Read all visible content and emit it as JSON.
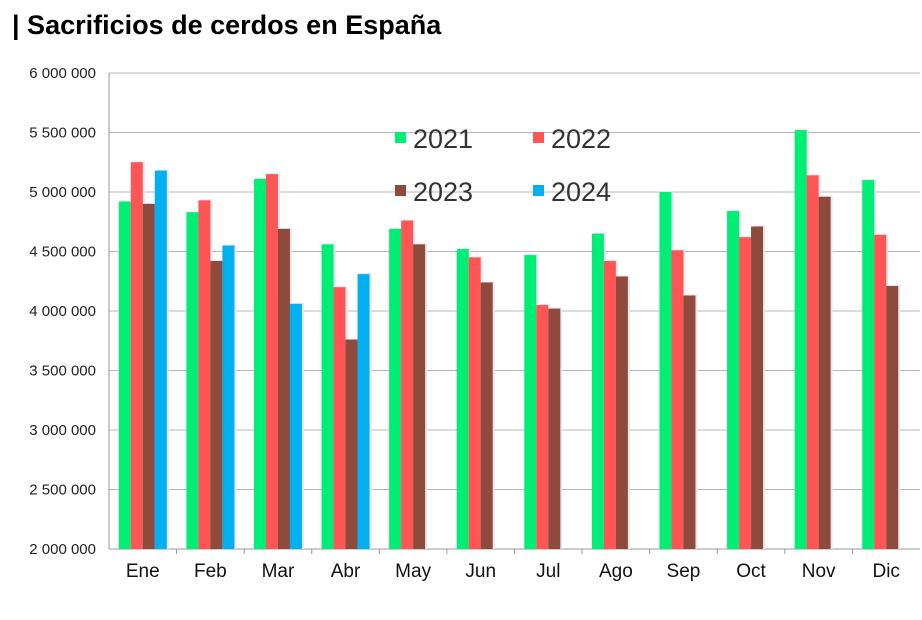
{
  "title": "| Sacrificios de cerdos en España",
  "chart_data": {
    "type": "bar",
    "title": "| Sacrificios de cerdos en España",
    "categories": [
      "Ene",
      "Feb",
      "Mar",
      "Abr",
      "May",
      "Jun",
      "Jul",
      "Ago",
      "Sep",
      "Oct",
      "Nov",
      "Dic"
    ],
    "series": [
      {
        "name": "2021",
        "color": "#00ee76",
        "values": [
          4920000,
          4830000,
          5110000,
          4560000,
          4690000,
          4520000,
          4470000,
          4650000,
          5000000,
          4840000,
          5520000,
          5100000
        ]
      },
      {
        "name": "2022",
        "color": "#ff5555",
        "values": [
          5250000,
          4930000,
          5150000,
          4200000,
          4760000,
          4450000,
          4050000,
          4420000,
          4510000,
          4620000,
          5140000,
          4640000
        ]
      },
      {
        "name": "2023",
        "color": "#8e4a3a",
        "values": [
          4900000,
          4420000,
          4690000,
          3760000,
          4560000,
          4240000,
          4020000,
          4290000,
          4130000,
          4710000,
          4960000,
          4210000
        ]
      },
      {
        "name": "2024",
        "color": "#00b0f0",
        "values": [
          5180000,
          4550000,
          4060000,
          4310000,
          null,
          null,
          null,
          null,
          null,
          null,
          null,
          null
        ]
      }
    ],
    "yticks": [
      "6 000 000",
      "5 500 000",
      "5 000 000",
      "4 500 000",
      "4 000 000",
      "3 500 000",
      "3 000 000",
      "2 500 000",
      "2 000 000"
    ],
    "ylim": [
      2000000,
      6000000
    ],
    "ytick_step": 500000,
    "grid": true,
    "legend_position": "top-center",
    "xlabel": "",
    "ylabel": ""
  }
}
